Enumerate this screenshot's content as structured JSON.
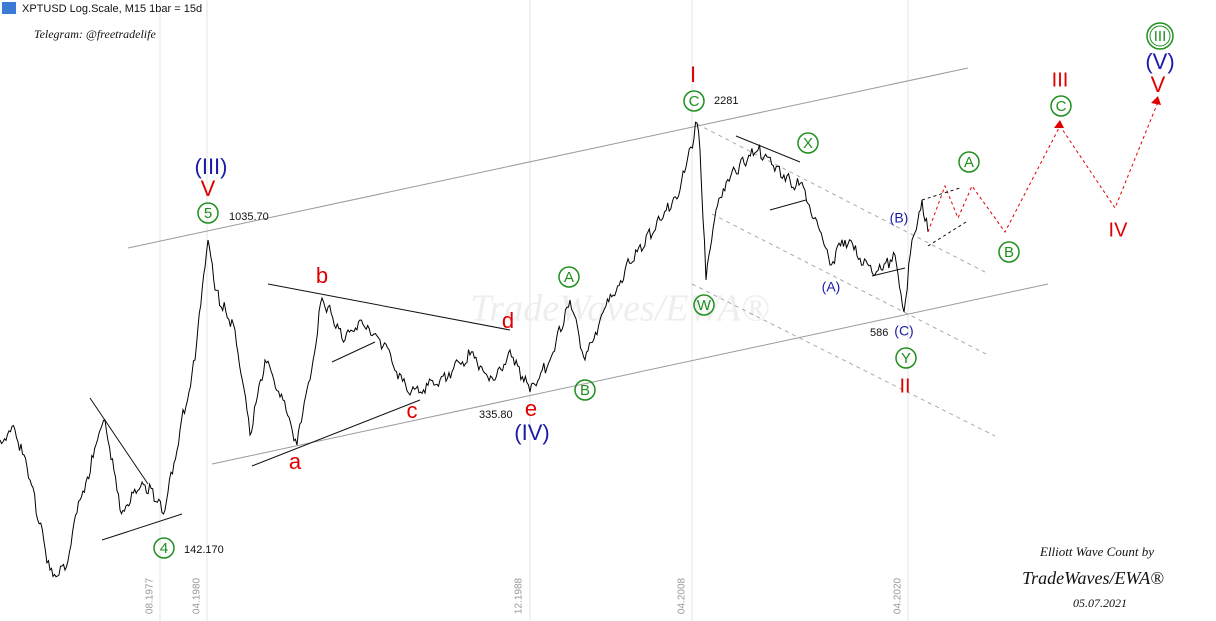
{
  "header": {
    "symbol": "XPTUSD Log.Scale, M15 1bar = 15d",
    "telegram": "Telegram: @freetradelife"
  },
  "labels": [
    {
      "text": "I"
    },
    {
      "text": "2281"
    },
    {
      "text": "C"
    },
    {
      "text": "(III)"
    },
    {
      "text": "V"
    },
    {
      "text": "5"
    },
    {
      "text": "1035.70"
    },
    {
      "text": "b"
    },
    {
      "text": "d"
    },
    {
      "text": "A"
    },
    {
      "text": "W"
    },
    {
      "text": "X"
    },
    {
      "text": "A"
    },
    {
      "text": "(B)"
    },
    {
      "text": "(A)"
    },
    {
      "text": "B"
    },
    {
      "text": "586"
    },
    {
      "text": "(C)"
    },
    {
      "text": "Y"
    },
    {
      "text": "II"
    },
    {
      "text": "c"
    },
    {
      "text": "335.80"
    },
    {
      "text": "e"
    },
    {
      "text": "B"
    },
    {
      "text": "(IV)"
    },
    {
      "text": "a"
    },
    {
      "text": "4"
    },
    {
      "text": "142.170"
    },
    {
      "text": "III"
    },
    {
      "text": "C"
    },
    {
      "text": "IV"
    },
    {
      "text": "V"
    },
    {
      "text": "(V)"
    },
    {
      "text": "III"
    }
  ],
  "dates": [
    "08.1977",
    "04.1980",
    "12.1988",
    "04.2008",
    "04.2020"
  ],
  "signature": {
    "line1": "Elliott Wave Count by",
    "line2": "TradeWaves/EWA®",
    "date": "05.07.2021"
  },
  "watermark": "TradeWaves/EWA®"
}
